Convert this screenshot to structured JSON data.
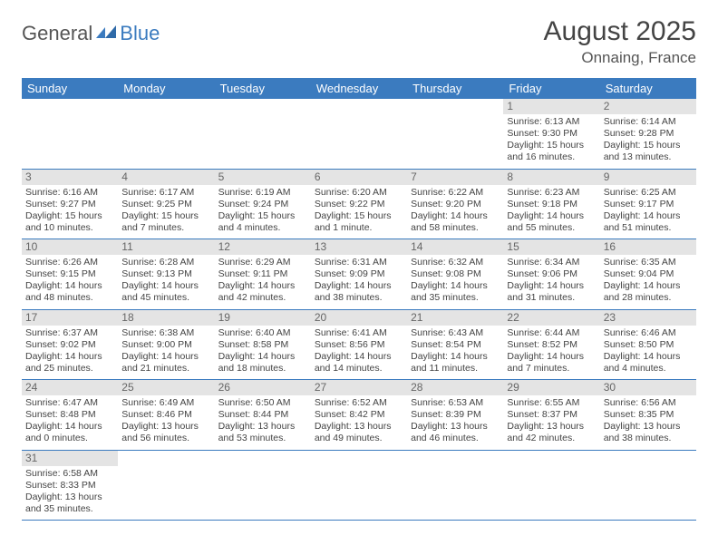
{
  "logo": {
    "part1": "General",
    "part2": "Blue"
  },
  "title": "August 2025",
  "location": "Onnaing, France",
  "colors": {
    "header_bg": "#3b7bbf",
    "header_text": "#ffffff",
    "daynum_bg": "#e4e4e4",
    "daynum_text": "#666666",
    "body_text": "#444444",
    "row_border": "#3b7bbf",
    "background": "#ffffff"
  },
  "day_headers": [
    "Sunday",
    "Monday",
    "Tuesday",
    "Wednesday",
    "Thursday",
    "Friday",
    "Saturday"
  ],
  "weeks": [
    [
      {
        "n": "",
        "sr": "",
        "ss": "",
        "d1": "",
        "d2": ""
      },
      {
        "n": "",
        "sr": "",
        "ss": "",
        "d1": "",
        "d2": ""
      },
      {
        "n": "",
        "sr": "",
        "ss": "",
        "d1": "",
        "d2": ""
      },
      {
        "n": "",
        "sr": "",
        "ss": "",
        "d1": "",
        "d2": ""
      },
      {
        "n": "",
        "sr": "",
        "ss": "",
        "d1": "",
        "d2": ""
      },
      {
        "n": "1",
        "sr": "Sunrise: 6:13 AM",
        "ss": "Sunset: 9:30 PM",
        "d1": "Daylight: 15 hours",
        "d2": "and 16 minutes."
      },
      {
        "n": "2",
        "sr": "Sunrise: 6:14 AM",
        "ss": "Sunset: 9:28 PM",
        "d1": "Daylight: 15 hours",
        "d2": "and 13 minutes."
      }
    ],
    [
      {
        "n": "3",
        "sr": "Sunrise: 6:16 AM",
        "ss": "Sunset: 9:27 PM",
        "d1": "Daylight: 15 hours",
        "d2": "and 10 minutes."
      },
      {
        "n": "4",
        "sr": "Sunrise: 6:17 AM",
        "ss": "Sunset: 9:25 PM",
        "d1": "Daylight: 15 hours",
        "d2": "and 7 minutes."
      },
      {
        "n": "5",
        "sr": "Sunrise: 6:19 AM",
        "ss": "Sunset: 9:24 PM",
        "d1": "Daylight: 15 hours",
        "d2": "and 4 minutes."
      },
      {
        "n": "6",
        "sr": "Sunrise: 6:20 AM",
        "ss": "Sunset: 9:22 PM",
        "d1": "Daylight: 15 hours",
        "d2": "and 1 minute."
      },
      {
        "n": "7",
        "sr": "Sunrise: 6:22 AM",
        "ss": "Sunset: 9:20 PM",
        "d1": "Daylight: 14 hours",
        "d2": "and 58 minutes."
      },
      {
        "n": "8",
        "sr": "Sunrise: 6:23 AM",
        "ss": "Sunset: 9:18 PM",
        "d1": "Daylight: 14 hours",
        "d2": "and 55 minutes."
      },
      {
        "n": "9",
        "sr": "Sunrise: 6:25 AM",
        "ss": "Sunset: 9:17 PM",
        "d1": "Daylight: 14 hours",
        "d2": "and 51 minutes."
      }
    ],
    [
      {
        "n": "10",
        "sr": "Sunrise: 6:26 AM",
        "ss": "Sunset: 9:15 PM",
        "d1": "Daylight: 14 hours",
        "d2": "and 48 minutes."
      },
      {
        "n": "11",
        "sr": "Sunrise: 6:28 AM",
        "ss": "Sunset: 9:13 PM",
        "d1": "Daylight: 14 hours",
        "d2": "and 45 minutes."
      },
      {
        "n": "12",
        "sr": "Sunrise: 6:29 AM",
        "ss": "Sunset: 9:11 PM",
        "d1": "Daylight: 14 hours",
        "d2": "and 42 minutes."
      },
      {
        "n": "13",
        "sr": "Sunrise: 6:31 AM",
        "ss": "Sunset: 9:09 PM",
        "d1": "Daylight: 14 hours",
        "d2": "and 38 minutes."
      },
      {
        "n": "14",
        "sr": "Sunrise: 6:32 AM",
        "ss": "Sunset: 9:08 PM",
        "d1": "Daylight: 14 hours",
        "d2": "and 35 minutes."
      },
      {
        "n": "15",
        "sr": "Sunrise: 6:34 AM",
        "ss": "Sunset: 9:06 PM",
        "d1": "Daylight: 14 hours",
        "d2": "and 31 minutes."
      },
      {
        "n": "16",
        "sr": "Sunrise: 6:35 AM",
        "ss": "Sunset: 9:04 PM",
        "d1": "Daylight: 14 hours",
        "d2": "and 28 minutes."
      }
    ],
    [
      {
        "n": "17",
        "sr": "Sunrise: 6:37 AM",
        "ss": "Sunset: 9:02 PM",
        "d1": "Daylight: 14 hours",
        "d2": "and 25 minutes."
      },
      {
        "n": "18",
        "sr": "Sunrise: 6:38 AM",
        "ss": "Sunset: 9:00 PM",
        "d1": "Daylight: 14 hours",
        "d2": "and 21 minutes."
      },
      {
        "n": "19",
        "sr": "Sunrise: 6:40 AM",
        "ss": "Sunset: 8:58 PM",
        "d1": "Daylight: 14 hours",
        "d2": "and 18 minutes."
      },
      {
        "n": "20",
        "sr": "Sunrise: 6:41 AM",
        "ss": "Sunset: 8:56 PM",
        "d1": "Daylight: 14 hours",
        "d2": "and 14 minutes."
      },
      {
        "n": "21",
        "sr": "Sunrise: 6:43 AM",
        "ss": "Sunset: 8:54 PM",
        "d1": "Daylight: 14 hours",
        "d2": "and 11 minutes."
      },
      {
        "n": "22",
        "sr": "Sunrise: 6:44 AM",
        "ss": "Sunset: 8:52 PM",
        "d1": "Daylight: 14 hours",
        "d2": "and 7 minutes."
      },
      {
        "n": "23",
        "sr": "Sunrise: 6:46 AM",
        "ss": "Sunset: 8:50 PM",
        "d1": "Daylight: 14 hours",
        "d2": "and 4 minutes."
      }
    ],
    [
      {
        "n": "24",
        "sr": "Sunrise: 6:47 AM",
        "ss": "Sunset: 8:48 PM",
        "d1": "Daylight: 14 hours",
        "d2": "and 0 minutes."
      },
      {
        "n": "25",
        "sr": "Sunrise: 6:49 AM",
        "ss": "Sunset: 8:46 PM",
        "d1": "Daylight: 13 hours",
        "d2": "and 56 minutes."
      },
      {
        "n": "26",
        "sr": "Sunrise: 6:50 AM",
        "ss": "Sunset: 8:44 PM",
        "d1": "Daylight: 13 hours",
        "d2": "and 53 minutes."
      },
      {
        "n": "27",
        "sr": "Sunrise: 6:52 AM",
        "ss": "Sunset: 8:42 PM",
        "d1": "Daylight: 13 hours",
        "d2": "and 49 minutes."
      },
      {
        "n": "28",
        "sr": "Sunrise: 6:53 AM",
        "ss": "Sunset: 8:39 PM",
        "d1": "Daylight: 13 hours",
        "d2": "and 46 minutes."
      },
      {
        "n": "29",
        "sr": "Sunrise: 6:55 AM",
        "ss": "Sunset: 8:37 PM",
        "d1": "Daylight: 13 hours",
        "d2": "and 42 minutes."
      },
      {
        "n": "30",
        "sr": "Sunrise: 6:56 AM",
        "ss": "Sunset: 8:35 PM",
        "d1": "Daylight: 13 hours",
        "d2": "and 38 minutes."
      }
    ],
    [
      {
        "n": "31",
        "sr": "Sunrise: 6:58 AM",
        "ss": "Sunset: 8:33 PM",
        "d1": "Daylight: 13 hours",
        "d2": "and 35 minutes."
      },
      {
        "n": "",
        "sr": "",
        "ss": "",
        "d1": "",
        "d2": ""
      },
      {
        "n": "",
        "sr": "",
        "ss": "",
        "d1": "",
        "d2": ""
      },
      {
        "n": "",
        "sr": "",
        "ss": "",
        "d1": "",
        "d2": ""
      },
      {
        "n": "",
        "sr": "",
        "ss": "",
        "d1": "",
        "d2": ""
      },
      {
        "n": "",
        "sr": "",
        "ss": "",
        "d1": "",
        "d2": ""
      },
      {
        "n": "",
        "sr": "",
        "ss": "",
        "d1": "",
        "d2": ""
      }
    ]
  ]
}
